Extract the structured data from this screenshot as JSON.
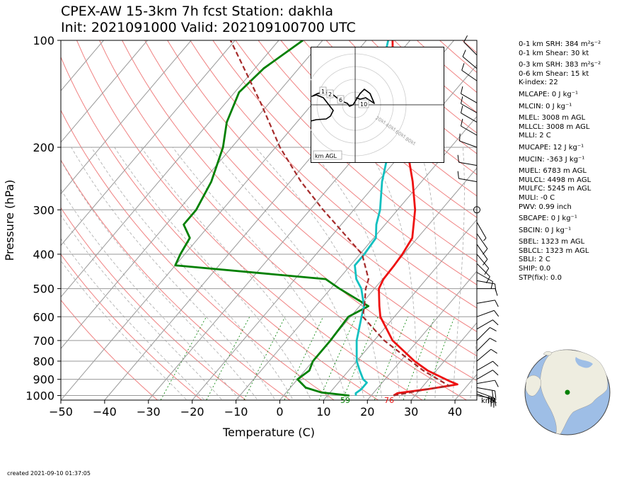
{
  "title": {
    "line1": "CPEX-AW 15-3km  7h fcst  Station: dakhla",
    "line2": "Init: 2021091000  Valid: 202109100700 UTC"
  },
  "created": "created 2021-09-10 01:37:05",
  "indices": [
    "0-1 km SRH: 384 m²s⁻²",
    "0-1 km Shear: 30 kt",
    "0-3 km SRH: 383 m²s⁻²",
    "0-6 km Shear: 15 kt",
    "K-index: 22",
    "MLCAPE: 0 J kg⁻¹",
    "MLCIN: 0 J kg⁻¹",
    "MLEL: 3008 m AGL",
    "MLLCL: 3008 m AGL",
    "MLLI: 2 C",
    "MUCAPE: 12 J kg⁻¹",
    "MUCIN: -363 J kg⁻¹",
    "MUEL: 6783 m AGL",
    "MULCL: 4498 m AGL",
    "MULFC: 5245 m AGL",
    "MULI: -0 C",
    "PWV: 0.99 inch",
    "SBCAPE: 0 J kg⁻¹",
    "SBCIN: 0 J kg⁻¹",
    "SBEL: 1323 m AGL",
    "SBLCL: 1323 m AGL",
    "SBLI: 2 C",
    "SHIP: 0.0",
    "STP(fix): 0.0"
  ],
  "hodograph": {
    "label": "km AGL",
    "ring_labels": [
      "20kt",
      "40kt",
      "60kt",
      "80kt"
    ],
    "height_labels": [
      "1",
      "2",
      "6",
      "10"
    ]
  },
  "colors": {
    "temperature": "#ee1111",
    "dewpoint": "#008000",
    "wetbulb": "#11c0c0",
    "parcel": "#a52a2a",
    "dry_adiabat": "#f08080",
    "moist_adiabat": "#aaaaaa",
    "mixing_ratio": "#008000"
  },
  "chart_data": {
    "type": "line",
    "chart_kind": "skew-T log-P sounding",
    "xlabel": "Temperature (C)",
    "ylabel": "Pressure (hPa)",
    "xlim": [
      -50,
      45
    ],
    "ylim": [
      1030,
      100
    ],
    "y_scale": "log",
    "x_ticks": [
      -50,
      -40,
      -30,
      -20,
      -10,
      0,
      10,
      20,
      30,
      40
    ],
    "y_ticks": [
      100,
      200,
      300,
      400,
      500,
      600,
      700,
      800,
      900,
      1000
    ],
    "surface_labels": {
      "dewpoint": "59",
      "temperature": "76"
    },
    "wind_unit_label": "knot",
    "series": [
      {
        "key": "temperature",
        "color": "#ee1111",
        "points": [
          [
            1000,
            25.1
          ],
          [
            985,
            25.5
          ],
          [
            960,
            31.5
          ],
          [
            930,
            37.5
          ],
          [
            910,
            35
          ],
          [
            850,
            28
          ],
          [
            800,
            23.2
          ],
          [
            700,
            14.2
          ],
          [
            600,
            6.8
          ],
          [
            560,
            4.5
          ],
          [
            500,
            1
          ],
          [
            470,
            0.2
          ],
          [
            430,
            0
          ],
          [
            400,
            -0.3
          ],
          [
            360,
            -1.2
          ],
          [
            330,
            -3.5
          ],
          [
            300,
            -6
          ],
          [
            250,
            -12
          ],
          [
            200,
            -20
          ],
          [
            150,
            -31
          ],
          [
            120,
            -38.5
          ],
          [
            100,
            -44
          ]
        ]
      },
      {
        "key": "dewpoint",
        "color": "#008000",
        "points": [
          [
            1000,
            15
          ],
          [
            980,
            8
          ],
          [
            950,
            3.5
          ],
          [
            900,
            0
          ],
          [
            850,
            1
          ],
          [
            800,
            0
          ],
          [
            700,
            0
          ],
          [
            600,
            -0.5
          ],
          [
            560,
            2
          ],
          [
            500,
            -8
          ],
          [
            470,
            -13
          ],
          [
            430,
            -50
          ],
          [
            400,
            -51
          ],
          [
            360,
            -52
          ],
          [
            330,
            -56
          ],
          [
            300,
            -56
          ],
          [
            250,
            -58
          ],
          [
            200,
            -62
          ],
          [
            170,
            -66
          ],
          [
            140,
            -69
          ],
          [
            120,
            -68
          ],
          [
            100,
            -64.5
          ]
        ]
      },
      {
        "key": "wetbulb",
        "color": "#11c0c0",
        "points": [
          [
            1000,
            16.5
          ],
          [
            985,
            16
          ],
          [
            960,
            16.5
          ],
          [
            920,
            16.5
          ],
          [
            900,
            15
          ],
          [
            850,
            12.5
          ],
          [
            800,
            10
          ],
          [
            700,
            6
          ],
          [
            600,
            2.5
          ],
          [
            560,
            1
          ],
          [
            500,
            -3
          ],
          [
            470,
            -6
          ],
          [
            430,
            -9
          ],
          [
            400,
            -9
          ],
          [
            360,
            -9.5
          ],
          [
            330,
            -12
          ],
          [
            300,
            -14
          ],
          [
            250,
            -19
          ],
          [
            200,
            -24
          ],
          [
            150,
            -33
          ],
          [
            120,
            -41
          ],
          [
            100,
            -45
          ]
        ]
      },
      {
        "key": "parcel",
        "color": "#a52a2a",
        "dashed": true,
        "points": [
          [
            1000,
            25.1
          ],
          [
            960,
            31.5
          ],
          [
            940,
            36
          ],
          [
            850,
            27
          ],
          [
            700,
            12.3
          ],
          [
            600,
            2.8
          ],
          [
            550,
            0.6
          ],
          [
            500,
            -2
          ],
          [
            470,
            -3.2
          ],
          [
            400,
            -9.5
          ],
          [
            300,
            -27
          ],
          [
            250,
            -37.5
          ],
          [
            200,
            -49
          ],
          [
            150,
            -62
          ],
          [
            100,
            -81
          ]
        ]
      }
    ],
    "wind_barbs_kt": [
      {
        "p": 1000,
        "dir": 100,
        "spd": 15
      },
      {
        "p": 990,
        "dir": 110,
        "spd": 25
      },
      {
        "p": 975,
        "dir": 110,
        "spd": 30
      },
      {
        "p": 950,
        "dir": 100,
        "spd": 20
      },
      {
        "p": 925,
        "dir": 80,
        "spd": 10
      },
      {
        "p": 900,
        "dir": 60,
        "spd": 10
      },
      {
        "p": 850,
        "dir": 60,
        "spd": 10
      },
      {
        "p": 800,
        "dir": 50,
        "spd": 10
      },
      {
        "p": 750,
        "dir": 45,
        "spd": 10
      },
      {
        "p": 700,
        "dir": 45,
        "spd": 10
      },
      {
        "p": 650,
        "dir": 60,
        "spd": 10
      },
      {
        "p": 600,
        "dir": 70,
        "spd": 10
      },
      {
        "p": 550,
        "dir": 80,
        "spd": 10
      },
      {
        "p": 500,
        "dir": 90,
        "spd": 10
      },
      {
        "p": 475,
        "dir": 100,
        "spd": 10
      },
      {
        "p": 450,
        "dir": 120,
        "spd": 10
      },
      {
        "p": 425,
        "dir": 135,
        "spd": 10
      },
      {
        "p": 400,
        "dir": 140,
        "spd": 10
      },
      {
        "p": 375,
        "dir": 145,
        "spd": 10
      },
      {
        "p": 350,
        "dir": 145,
        "spd": 10
      },
      {
        "p": 325,
        "dir": 150,
        "spd": 5
      },
      {
        "p": 300,
        "dir": 0,
        "spd": 0
      },
      {
        "p": 250,
        "dir": 280,
        "spd": 10
      },
      {
        "p": 225,
        "dir": 280,
        "spd": 10
      },
      {
        "p": 200,
        "dir": 290,
        "spd": 10
      },
      {
        "p": 185,
        "dir": 300,
        "spd": 10
      },
      {
        "p": 170,
        "dir": 300,
        "spd": 10
      },
      {
        "p": 160,
        "dir": 300,
        "spd": 10
      },
      {
        "p": 150,
        "dir": 300,
        "spd": 10
      },
      {
        "p": 130,
        "dir": 305,
        "spd": 10
      },
      {
        "p": 120,
        "dir": 310,
        "spd": 10
      },
      {
        "p": 110,
        "dir": 315,
        "spd": 10
      }
    ]
  }
}
